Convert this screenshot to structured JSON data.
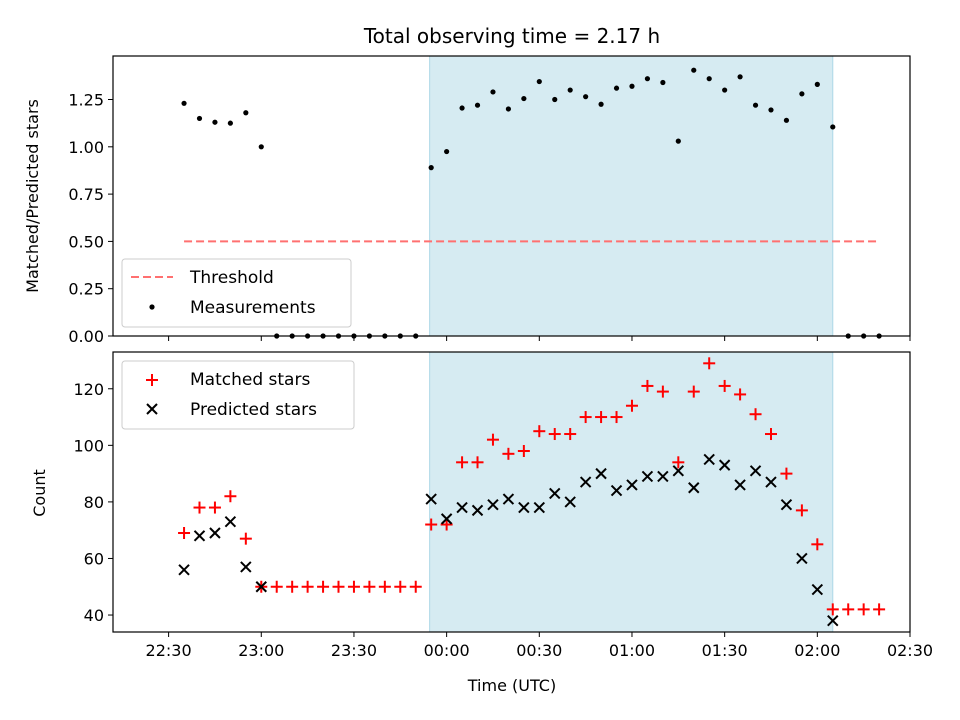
{
  "chart_data": {
    "title": "Total observing time = 2.17 h",
    "x_tick_labels": [
      "22:30",
      "23:00",
      "23:30",
      "00:00",
      "00:30",
      "01:00",
      "01:30",
      "02:00",
      "02:30"
    ],
    "x_tick_values_min": [
      -90,
      -60,
      -30,
      0,
      30,
      60,
      90,
      120,
      150
    ],
    "xlim_min": [
      -108,
      150
    ],
    "xlabel": "Time (UTC)",
    "highlight_span_min": [
      -5.5,
      125
    ],
    "highlight_color": "#add8e6",
    "top": {
      "type": "scatter",
      "ylabel": "Matched/Predicted stars",
      "ylim": [
        0,
        1.48
      ],
      "y_ticks": [
        0,
        0.25,
        0.5,
        0.75,
        1.0,
        1.25
      ],
      "y_tick_labels": [
        "0.00",
        "0.25",
        "0.50",
        "0.75",
        "1.00",
        "1.25"
      ],
      "threshold": {
        "name": "Threshold",
        "value": 0.5,
        "x_range_min": [
          -85,
          140
        ],
        "color": "#ff7070"
      },
      "measurements": {
        "name": "Measurements",
        "color": "#000000",
        "x_min": [
          -85,
          -80,
          -75,
          -70,
          -65,
          -60,
          -55,
          -50,
          -45,
          -40,
          -35,
          -30,
          -25,
          -20,
          -15,
          -10,
          -5,
          0,
          5,
          10,
          15,
          20,
          25,
          30,
          35,
          40,
          45,
          50,
          55,
          60,
          65,
          70,
          75,
          80,
          85,
          90,
          95,
          100,
          105,
          110,
          115,
          120,
          125,
          130,
          135,
          140
        ],
        "y": [
          1.23,
          1.15,
          1.13,
          1.125,
          1.18,
          1.0,
          0,
          0,
          0,
          0,
          0,
          0,
          0,
          0,
          0,
          0,
          0.89,
          0.975,
          1.205,
          1.22,
          1.29,
          1.2,
          1.255,
          1.345,
          1.25,
          1.3,
          1.265,
          1.225,
          1.31,
          1.32,
          1.36,
          1.34,
          1.03,
          1.405,
          1.36,
          1.3,
          1.37,
          1.22,
          1.195,
          1.14,
          1.28,
          1.33,
          1.105,
          0,
          0,
          0
        ]
      },
      "legend_position": "lower-left"
    },
    "bottom": {
      "type": "scatter",
      "ylabel": "Count",
      "ylim": [
        34,
        133
      ],
      "y_ticks": [
        40,
        60,
        80,
        100,
        120
      ],
      "y_tick_labels": [
        "40",
        "60",
        "80",
        "100",
        "120"
      ],
      "series": [
        {
          "name": "Matched stars",
          "marker": "plus",
          "color": "#ff0000",
          "x_min": [
            -85,
            -80,
            -75,
            -70,
            -65,
            -60,
            -55,
            -50,
            -45,
            -40,
            -35,
            -30,
            -25,
            -20,
            -15,
            -10,
            -5,
            0,
            5,
            10,
            15,
            20,
            25,
            30,
            35,
            40,
            45,
            50,
            55,
            60,
            65,
            70,
            75,
            80,
            85,
            90,
            95,
            100,
            105,
            110,
            115,
            120,
            125,
            130,
            135,
            140
          ],
          "y": [
            69,
            78,
            78,
            82,
            67,
            50,
            50,
            50,
            50,
            50,
            50,
            50,
            50,
            50,
            50,
            50,
            72,
            72,
            94,
            94,
            102,
            97,
            98,
            105,
            104,
            104,
            110,
            110,
            110,
            114,
            121,
            119,
            94,
            119,
            129,
            121,
            118,
            111,
            104,
            90,
            77,
            65,
            42,
            42,
            42,
            42
          ]
        },
        {
          "name": "Predicted stars",
          "marker": "x",
          "color": "#000000",
          "x_min": [
            -85,
            -80,
            -75,
            -70,
            -65,
            -60,
            -5,
            0,
            5,
            10,
            15,
            20,
            25,
            30,
            35,
            40,
            45,
            50,
            55,
            60,
            65,
            70,
            75,
            80,
            85,
            90,
            95,
            100,
            105,
            110,
            115,
            120,
            125
          ],
          "y": [
            56,
            68,
            69,
            73,
            57,
            50,
            81,
            74,
            78,
            77,
            79,
            81,
            78,
            78,
            83,
            80,
            87,
            90,
            84,
            86,
            89,
            89,
            91,
            85,
            95,
            93,
            86,
            91,
            87,
            79,
            60,
            49,
            38
          ]
        }
      ],
      "legend_position": "upper-left"
    }
  }
}
